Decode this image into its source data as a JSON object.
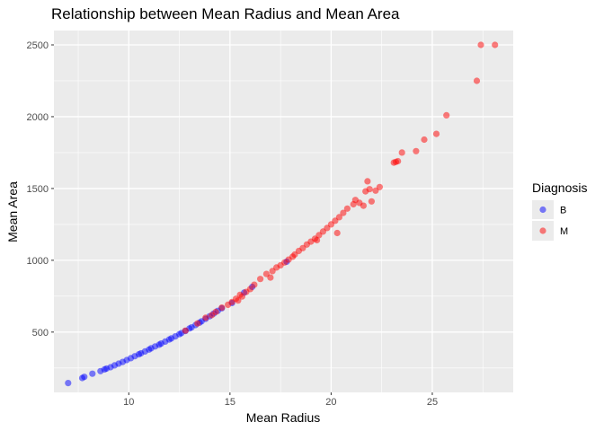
{
  "chart_data": {
    "type": "scatter",
    "title": "Relationship between Mean Radius and Mean Area",
    "xlabel": "Mean Radius",
    "ylabel": "Mean Area",
    "xlim": [
      6.3,
      29.0
    ],
    "ylim": [
      80,
      2600
    ],
    "x_ticks": [
      10,
      15,
      20,
      25
    ],
    "y_ticks": [
      500,
      1000,
      1500,
      2000,
      2500
    ],
    "x_tick_labels": [
      "10",
      "15",
      "20",
      "25"
    ],
    "y_tick_labels": [
      "500",
      "1000",
      "1500",
      "2000",
      "2500"
    ],
    "grid": true,
    "legend_position": "right",
    "legend_title": "Diagnosis",
    "series": [
      {
        "name": "B",
        "color": "#0000ff",
        "points": [
          [
            7.0,
            145
          ],
          [
            7.7,
            180
          ],
          [
            7.8,
            188
          ],
          [
            8.2,
            210
          ],
          [
            8.6,
            228
          ],
          [
            8.8,
            240
          ],
          [
            8.9,
            246
          ],
          [
            9.1,
            255
          ],
          [
            9.3,
            268
          ],
          [
            9.5,
            280
          ],
          [
            9.7,
            292
          ],
          [
            9.9,
            305
          ],
          [
            10.1,
            318
          ],
          [
            10.3,
            332
          ],
          [
            10.5,
            345
          ],
          [
            10.6,
            352
          ],
          [
            10.8,
            365
          ],
          [
            11.0,
            378
          ],
          [
            11.1,
            387
          ],
          [
            11.3,
            400
          ],
          [
            11.5,
            412
          ],
          [
            11.6,
            420
          ],
          [
            11.8,
            434
          ],
          [
            12.0,
            448
          ],
          [
            12.1,
            456
          ],
          [
            12.3,
            470
          ],
          [
            12.5,
            485
          ],
          [
            12.6,
            493
          ],
          [
            12.8,
            508
          ],
          [
            13.0,
            525
          ],
          [
            13.1,
            533
          ],
          [
            13.3,
            549
          ],
          [
            13.5,
            566
          ],
          [
            13.6,
            575
          ],
          [
            13.8,
            592
          ],
          [
            14.0,
            610
          ],
          [
            14.2,
            629
          ],
          [
            14.4,
            648
          ],
          [
            14.6,
            666
          ],
          [
            15.1,
            702
          ],
          [
            15.7,
            775
          ],
          [
            16.1,
            815
          ],
          [
            17.8,
            990
          ]
        ]
      },
      {
        "name": "M",
        "color": "#ff0000",
        "points": [
          [
            12.8,
            510
          ],
          [
            13.4,
            560
          ],
          [
            13.8,
            600
          ],
          [
            14.1,
            618
          ],
          [
            14.3,
            640
          ],
          [
            14.6,
            670
          ],
          [
            14.9,
            690
          ],
          [
            15.1,
            710
          ],
          [
            15.3,
            732
          ],
          [
            15.4,
            720
          ],
          [
            15.5,
            760
          ],
          [
            15.6,
            748
          ],
          [
            15.8,
            780
          ],
          [
            16.0,
            800
          ],
          [
            16.2,
            830
          ],
          [
            16.5,
            870
          ],
          [
            16.8,
            905
          ],
          [
            17.0,
            880
          ],
          [
            17.1,
            925
          ],
          [
            17.3,
            950
          ],
          [
            17.5,
            965
          ],
          [
            17.7,
            985
          ],
          [
            17.9,
            1005
          ],
          [
            18.1,
            1025
          ],
          [
            18.2,
            1040
          ],
          [
            18.4,
            1065
          ],
          [
            18.6,
            1085
          ],
          [
            18.8,
            1110
          ],
          [
            19.0,
            1130
          ],
          [
            19.2,
            1150
          ],
          [
            19.4,
            1175
          ],
          [
            19.6,
            1200
          ],
          [
            19.8,
            1225
          ],
          [
            20.0,
            1250
          ],
          [
            20.2,
            1275
          ],
          [
            20.4,
            1300
          ],
          [
            20.6,
            1330
          ],
          [
            20.8,
            1360
          ],
          [
            20.3,
            1190
          ],
          [
            19.3,
            1140
          ],
          [
            21.1,
            1390
          ],
          [
            21.2,
            1420
          ],
          [
            21.4,
            1400
          ],
          [
            21.6,
            1380
          ],
          [
            21.7,
            1480
          ],
          [
            21.8,
            1550
          ],
          [
            21.9,
            1495
          ],
          [
            22.0,
            1410
          ],
          [
            22.2,
            1485
          ],
          [
            22.4,
            1510
          ],
          [
            23.1,
            1680
          ],
          [
            23.2,
            1685
          ],
          [
            23.3,
            1690
          ],
          [
            23.5,
            1750
          ],
          [
            24.2,
            1760
          ],
          [
            24.6,
            1840
          ],
          [
            25.2,
            1880
          ],
          [
            25.7,
            2010
          ],
          [
            27.2,
            2250
          ],
          [
            27.4,
            2500
          ],
          [
            28.1,
            2500
          ]
        ]
      }
    ]
  }
}
